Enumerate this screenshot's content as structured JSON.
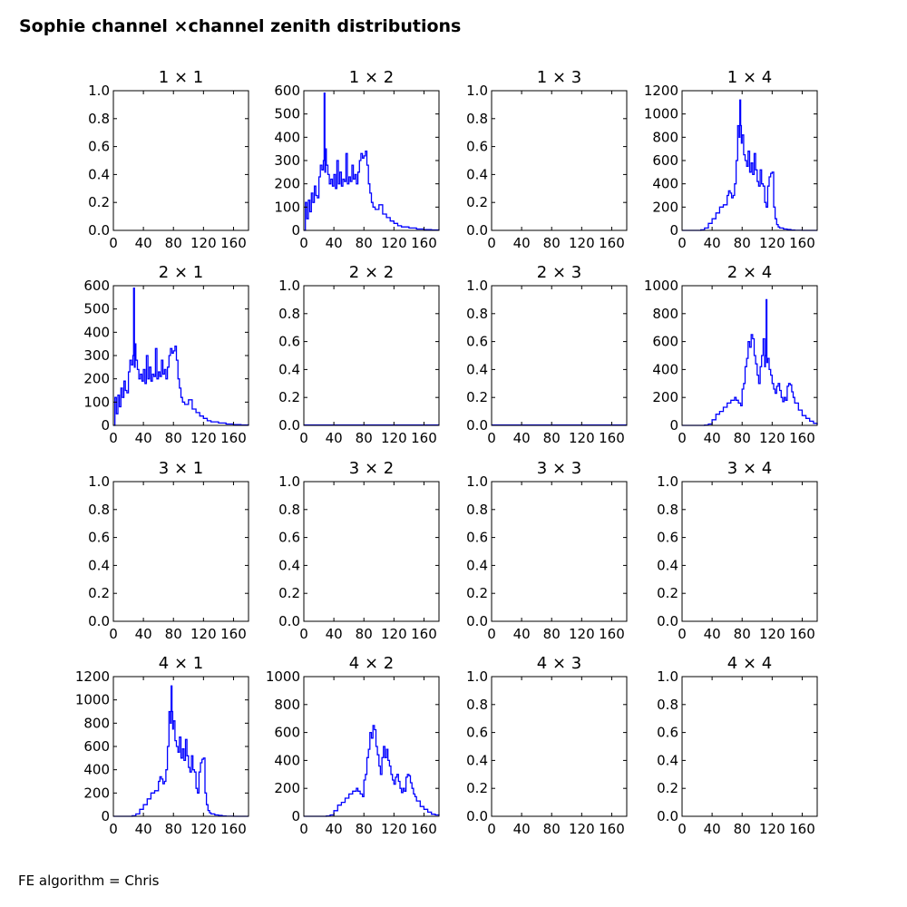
{
  "title": "Sophie channel ×channel zenith distributions",
  "footer": "FE algorithm = Chris",
  "chart_data": [
    {
      "type": "line",
      "title": "1 × 1",
      "empty": true,
      "xticks": [
        0,
        40,
        80,
        120,
        160
      ],
      "xlim": [
        0,
        180
      ],
      "ylim": [
        0,
        1
      ],
      "yticks": [
        "0.0",
        "0.2",
        "0.4",
        "0.6",
        "0.8",
        "1.0"
      ],
      "series": []
    },
    {
      "type": "line",
      "title": "1 × 2",
      "empty": false,
      "xticks": [
        0,
        40,
        80,
        120,
        160
      ],
      "xlim": [
        0,
        180
      ],
      "ylim": [
        0,
        600
      ],
      "yticks": [
        "0",
        "100",
        "200",
        "300",
        "400",
        "500",
        "600"
      ],
      "series": [
        {
          "color": "#0000ff",
          "x": [
            0,
            2,
            4,
            6,
            8,
            10,
            12,
            14,
            16,
            18,
            20,
            22,
            24,
            26,
            27,
            28,
            29,
            30,
            32,
            34,
            36,
            38,
            40,
            42,
            44,
            46,
            48,
            50,
            52,
            54,
            56,
            58,
            60,
            62,
            64,
            66,
            68,
            70,
            72,
            74,
            76,
            78,
            80,
            82,
            84,
            86,
            88,
            90,
            92,
            95,
            100,
            105,
            110,
            115,
            120,
            125,
            130,
            140,
            150,
            160,
            170,
            180
          ],
          "y": [
            0,
            120,
            50,
            130,
            80,
            160,
            120,
            190,
            150,
            140,
            230,
            280,
            260,
            300,
            590,
            250,
            350,
            280,
            240,
            200,
            220,
            190,
            240,
            180,
            300,
            200,
            250,
            190,
            220,
            210,
            330,
            200,
            230,
            210,
            280,
            220,
            240,
            200,
            250,
            300,
            330,
            310,
            320,
            340,
            280,
            200,
            160,
            120,
            100,
            90,
            110,
            70,
            55,
            40,
            30,
            20,
            15,
            10,
            6,
            3,
            2,
            1
          ]
        }
      ]
    },
    {
      "type": "line",
      "title": "1 × 3",
      "empty": true,
      "xticks": [
        0,
        40,
        80,
        120,
        160
      ],
      "xlim": [
        0,
        180
      ],
      "ylim": [
        0,
        1
      ],
      "yticks": [
        "0.0",
        "0.2",
        "0.4",
        "0.6",
        "0.8",
        "1.0"
      ],
      "series": []
    },
    {
      "type": "line",
      "title": "1 × 4",
      "empty": false,
      "xticks": [
        0,
        40,
        80,
        120,
        160
      ],
      "xlim": [
        0,
        180
      ],
      "ylim": [
        0,
        1200
      ],
      "yticks": [
        "0",
        "200",
        "400",
        "600",
        "800",
        "1000",
        "1200"
      ],
      "series": [
        {
          "color": "#0000ff",
          "x": [
            0,
            20,
            25,
            30,
            35,
            40,
            45,
            50,
            55,
            60,
            62,
            64,
            66,
            68,
            70,
            72,
            74,
            76,
            77,
            78,
            79,
            80,
            82,
            84,
            86,
            88,
            90,
            92,
            94,
            96,
            98,
            100,
            102,
            104,
            106,
            108,
            110,
            112,
            114,
            116,
            118,
            120,
            122,
            124,
            126,
            128,
            130,
            135,
            140,
            145,
            150,
            160,
            180
          ],
          "y": [
            0,
            0,
            5,
            20,
            60,
            100,
            150,
            200,
            220,
            300,
            340,
            320,
            280,
            300,
            400,
            600,
            900,
            800,
            1120,
            900,
            750,
            820,
            650,
            600,
            550,
            680,
            500,
            580,
            480,
            660,
            520,
            420,
            380,
            520,
            400,
            380,
            240,
            200,
            380,
            460,
            490,
            500,
            200,
            100,
            50,
            30,
            20,
            12,
            8,
            3,
            1,
            0,
            0
          ]
        }
      ]
    },
    {
      "type": "line",
      "title": "2 × 1",
      "empty": false,
      "xticks": [
        0,
        40,
        80,
        120,
        160
      ],
      "xlim": [
        0,
        180
      ],
      "ylim": [
        0,
        600
      ],
      "yticks": [
        "0",
        "100",
        "200",
        "300",
        "400",
        "500",
        "600"
      ],
      "series": [
        {
          "color": "#0000ff",
          "x": [
            0,
            2,
            4,
            6,
            8,
            10,
            12,
            14,
            16,
            18,
            20,
            22,
            24,
            26,
            27,
            28,
            29,
            30,
            32,
            34,
            36,
            38,
            40,
            42,
            44,
            46,
            48,
            50,
            52,
            54,
            56,
            58,
            60,
            62,
            64,
            66,
            68,
            70,
            72,
            74,
            76,
            78,
            80,
            82,
            84,
            86,
            88,
            90,
            92,
            95,
            100,
            105,
            110,
            115,
            120,
            125,
            130,
            140,
            150,
            160,
            170,
            180
          ],
          "y": [
            0,
            120,
            50,
            130,
            80,
            160,
            120,
            190,
            150,
            140,
            230,
            280,
            260,
            300,
            590,
            250,
            350,
            280,
            240,
            200,
            220,
            190,
            240,
            180,
            300,
            200,
            250,
            190,
            220,
            210,
            330,
            200,
            230,
            210,
            280,
            220,
            240,
            200,
            250,
            300,
            330,
            310,
            320,
            340,
            280,
            200,
            160,
            120,
            100,
            90,
            110,
            70,
            55,
            40,
            30,
            20,
            15,
            10,
            6,
            3,
            2,
            1
          ]
        }
      ]
    },
    {
      "type": "line",
      "title": "2 × 2",
      "empty": true,
      "flatline": true,
      "xticks": [
        0,
        40,
        80,
        120,
        160
      ],
      "xlim": [
        0,
        180
      ],
      "ylim": [
        0,
        1
      ],
      "yticks": [
        "0.0",
        "0.2",
        "0.4",
        "0.6",
        "0.8",
        "1.0"
      ],
      "series": []
    },
    {
      "type": "line",
      "title": "2 × 3",
      "empty": true,
      "flatline": true,
      "xticks": [
        0,
        40,
        80,
        120,
        160
      ],
      "xlim": [
        0,
        180
      ],
      "ylim": [
        0,
        1
      ],
      "yticks": [
        "0.0",
        "0.2",
        "0.4",
        "0.6",
        "0.8",
        "1.0"
      ],
      "series": []
    },
    {
      "type": "line",
      "title": "2 × 4",
      "empty": false,
      "xticks": [
        0,
        40,
        80,
        120,
        160
      ],
      "xlim": [
        0,
        180
      ],
      "ylim": [
        0,
        1000
      ],
      "yticks": [
        "0",
        "200",
        "400",
        "600",
        "800",
        "1000"
      ],
      "series": [
        {
          "color": "#0000ff",
          "x": [
            0,
            20,
            30,
            35,
            40,
            45,
            50,
            55,
            60,
            65,
            70,
            72,
            75,
            78,
            80,
            82,
            84,
            86,
            88,
            90,
            92,
            94,
            96,
            98,
            100,
            102,
            104,
            106,
            108,
            110,
            111,
            112,
            113,
            114,
            116,
            118,
            120,
            122,
            124,
            126,
            128,
            130,
            132,
            134,
            136,
            138,
            140,
            142,
            144,
            146,
            148,
            150,
            155,
            160,
            165,
            170,
            175,
            180
          ],
          "y": [
            0,
            0,
            2,
            10,
            40,
            80,
            100,
            130,
            160,
            180,
            200,
            180,
            160,
            140,
            260,
            300,
            420,
            480,
            600,
            560,
            650,
            620,
            500,
            440,
            360,
            300,
            420,
            500,
            620,
            420,
            500,
            900,
            450,
            480,
            400,
            360,
            300,
            260,
            230,
            280,
            300,
            250,
            200,
            170,
            200,
            180,
            280,
            300,
            290,
            240,
            200,
            160,
            110,
            70,
            50,
            30,
            15,
            5
          ]
        }
      ]
    },
    {
      "type": "line",
      "title": "3 × 1",
      "empty": true,
      "xticks": [
        0,
        40,
        80,
        120,
        160
      ],
      "xlim": [
        0,
        180
      ],
      "ylim": [
        0,
        1
      ],
      "yticks": [
        "0.0",
        "0.2",
        "0.4",
        "0.6",
        "0.8",
        "1.0"
      ],
      "series": []
    },
    {
      "type": "line",
      "title": "3 × 2",
      "empty": true,
      "xticks": [
        0,
        40,
        80,
        120,
        160
      ],
      "xlim": [
        0,
        180
      ],
      "ylim": [
        0,
        1
      ],
      "yticks": [
        "0.0",
        "0.2",
        "0.4",
        "0.6",
        "0.8",
        "1.0"
      ],
      "series": []
    },
    {
      "type": "line",
      "title": "3 × 3",
      "empty": true,
      "xticks": [
        0,
        40,
        80,
        120,
        160
      ],
      "xlim": [
        0,
        180
      ],
      "ylim": [
        0,
        1
      ],
      "yticks": [
        "0.0",
        "0.2",
        "0.4",
        "0.6",
        "0.8",
        "1.0"
      ],
      "series": []
    },
    {
      "type": "line",
      "title": "3 × 4",
      "empty": true,
      "xticks": [
        0,
        40,
        80,
        120,
        160
      ],
      "xlim": [
        0,
        180
      ],
      "ylim": [
        0,
        1
      ],
      "yticks": [
        "0.0",
        "0.2",
        "0.4",
        "0.6",
        "0.8",
        "1.0"
      ],
      "series": []
    },
    {
      "type": "line",
      "title": "4 × 1",
      "empty": false,
      "xticks": [
        0,
        40,
        80,
        120,
        160
      ],
      "xlim": [
        0,
        180
      ],
      "ylim": [
        0,
        1200
      ],
      "yticks": [
        "0",
        "200",
        "400",
        "600",
        "800",
        "1000",
        "1200"
      ],
      "series": [
        {
          "color": "#0000ff",
          "x": [
            0,
            20,
            25,
            30,
            35,
            40,
            45,
            50,
            55,
            60,
            62,
            64,
            66,
            68,
            70,
            72,
            74,
            76,
            77,
            78,
            79,
            80,
            82,
            84,
            86,
            88,
            90,
            92,
            94,
            96,
            98,
            100,
            102,
            104,
            106,
            108,
            110,
            112,
            114,
            116,
            118,
            120,
            122,
            124,
            126,
            128,
            130,
            135,
            140,
            145,
            150,
            160,
            180
          ],
          "y": [
            0,
            0,
            5,
            20,
            60,
            100,
            150,
            200,
            220,
            300,
            340,
            320,
            280,
            300,
            400,
            600,
            900,
            800,
            1120,
            900,
            750,
            820,
            650,
            600,
            550,
            680,
            500,
            580,
            480,
            660,
            520,
            420,
            380,
            520,
            400,
            380,
            240,
            200,
            380,
            460,
            490,
            500,
            200,
            100,
            50,
            30,
            20,
            12,
            8,
            3,
            1,
            0,
            0
          ]
        }
      ]
    },
    {
      "type": "line",
      "title": "4 × 2",
      "empty": false,
      "xticks": [
        0,
        40,
        80,
        120,
        160
      ],
      "xlim": [
        0,
        180
      ],
      "ylim": [
        0,
        1000
      ],
      "yticks": [
        "0",
        "200",
        "400",
        "600",
        "800",
        "1000"
      ],
      "series": [
        {
          "color": "#0000ff",
          "x": [
            0,
            20,
            30,
            35,
            40,
            45,
            50,
            55,
            60,
            65,
            70,
            72,
            75,
            78,
            80,
            82,
            84,
            86,
            88,
            90,
            92,
            94,
            96,
            98,
            100,
            102,
            104,
            106,
            108,
            110,
            112,
            114,
            116,
            118,
            120,
            122,
            124,
            126,
            128,
            130,
            132,
            134,
            136,
            138,
            140,
            142,
            144,
            146,
            148,
            150,
            155,
            160,
            165,
            170,
            175,
            180
          ],
          "y": [
            0,
            0,
            2,
            10,
            40,
            80,
            100,
            130,
            160,
            180,
            200,
            180,
            160,
            140,
            260,
            300,
            420,
            480,
            600,
            560,
            650,
            620,
            500,
            440,
            360,
            300,
            420,
            500,
            420,
            480,
            400,
            360,
            300,
            260,
            230,
            280,
            300,
            250,
            200,
            170,
            200,
            180,
            280,
            300,
            290,
            240,
            200,
            160,
            140,
            110,
            70,
            50,
            30,
            15,
            10,
            5
          ]
        }
      ]
    },
    {
      "type": "line",
      "title": "4 × 3",
      "empty": true,
      "xticks": [
        0,
        40,
        80,
        120,
        160
      ],
      "xlim": [
        0,
        180
      ],
      "ylim": [
        0,
        1
      ],
      "yticks": [
        "0.0",
        "0.2",
        "0.4",
        "0.6",
        "0.8",
        "1.0"
      ],
      "series": []
    },
    {
      "type": "line",
      "title": "4 × 4",
      "empty": true,
      "xticks": [
        0,
        40,
        80,
        120,
        160
      ],
      "xlim": [
        0,
        180
      ],
      "ylim": [
        0,
        1
      ],
      "yticks": [
        "0.0",
        "0.2",
        "0.4",
        "0.6",
        "0.8",
        "1.0"
      ],
      "series": []
    }
  ]
}
